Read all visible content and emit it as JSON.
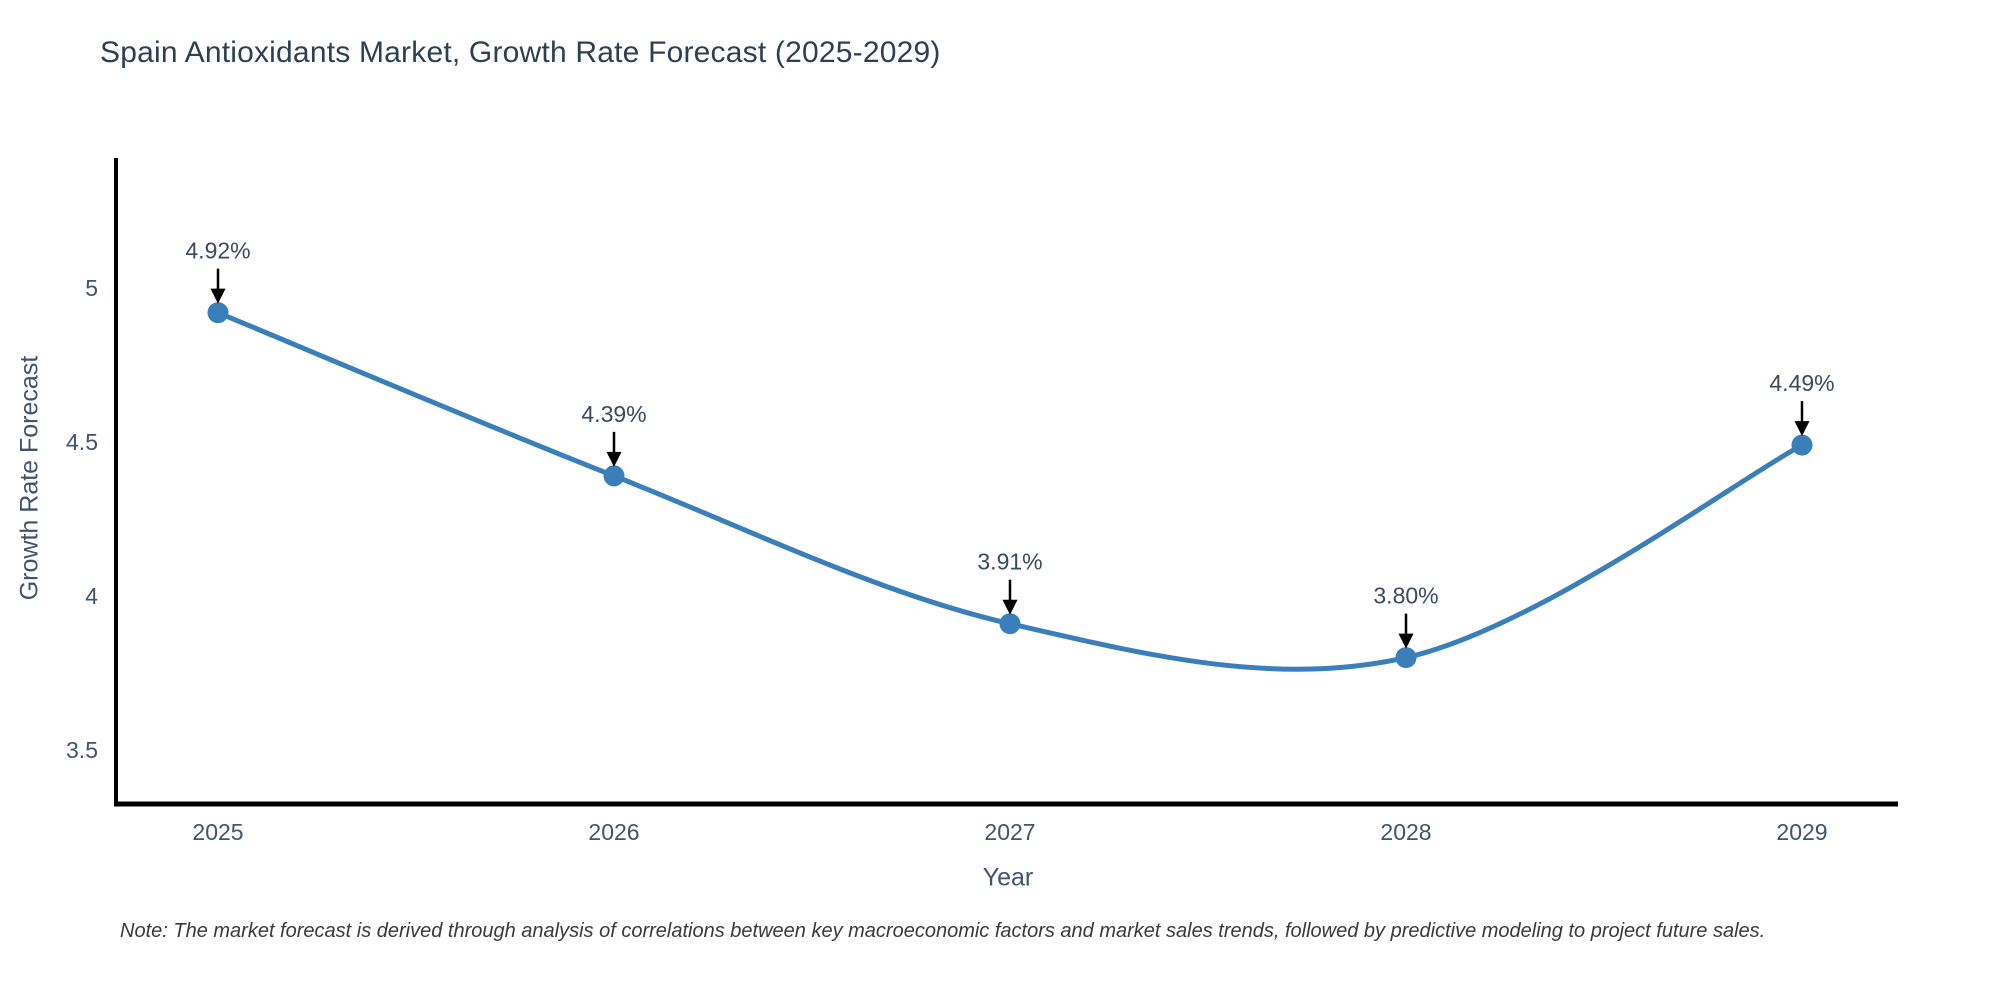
{
  "chart_data": {
    "type": "line",
    "title": "Spain Antioxidants Market, Growth Rate Forecast (2025-2029)",
    "xlabel": "Year",
    "ylabel": "Growth Rate Forecast",
    "note": "Note: The market forecast is derived through analysis of correlations between key macroeconomic factors and market sales trends, followed by predictive modeling to project future sales.",
    "categories": [
      "2025",
      "2026",
      "2027",
      "2028",
      "2029"
    ],
    "values": [
      4.92,
      4.39,
      3.91,
      3.8,
      4.49
    ],
    "point_labels": [
      "4.92%",
      "4.39%",
      "3.91%",
      "3.80%",
      "4.49%"
    ],
    "ytick_labels": [
      "3.5",
      "4",
      "4.5",
      "5"
    ],
    "ytick_values": [
      3.5,
      4,
      4.5,
      5
    ],
    "ylim": [
      3.32,
      5.42
    ],
    "grid": false,
    "legend": false,
    "line_shape": "spline",
    "annotation_style": "value label with downward black arrow above each marker",
    "colors": {
      "line": "#3b7fba",
      "marker": "#3b7fba",
      "axis": "#000000",
      "title": "#2e3f54",
      "tick_label": "#42536b",
      "annotation_text": "#3c4a5e",
      "arrow": "#000000",
      "note": "#3a3a3a",
      "background": "#ffffff"
    }
  }
}
